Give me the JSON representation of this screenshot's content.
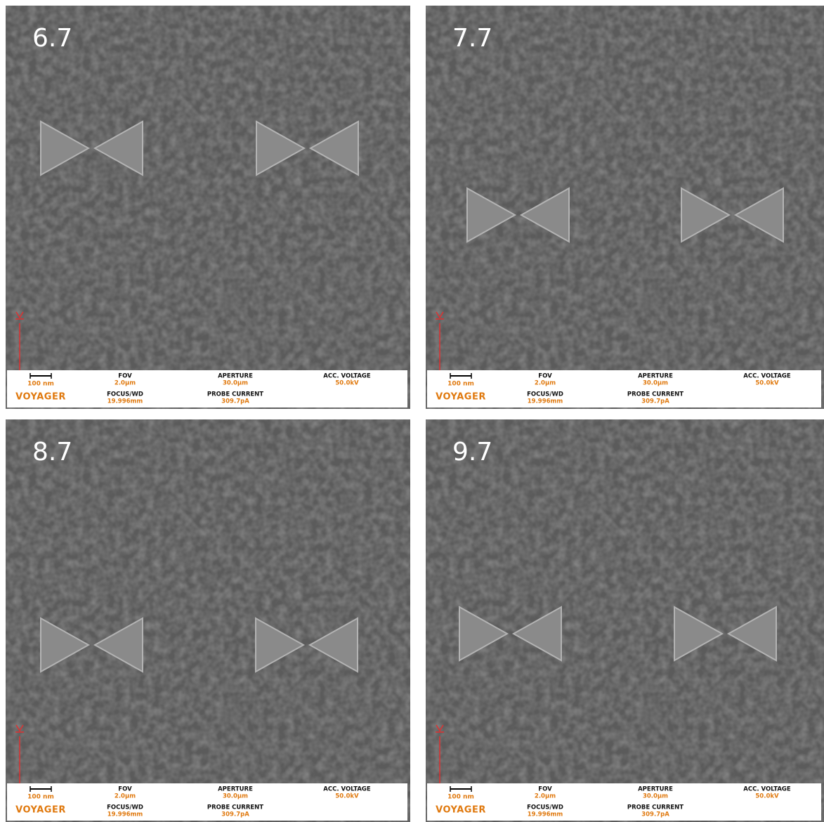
{
  "panels": [
    {
      "label": "6.7",
      "info": {
        "scale": "100 nm",
        "logo": "VOYAGER",
        "fov_label": "FOV",
        "fov": "2.0µm",
        "aperture_label": "APERTURE",
        "aperture": "30.0µm",
        "voltage_label": "ACC. VOLTAGE",
        "voltage": "50.0kV",
        "focus_label": "FOCUS/WD",
        "focus": "19.996mm",
        "current_label": "PROBE CURRENT",
        "current": "309.7pA"
      }
    },
    {
      "label": "7.7",
      "info": {
        "scale": "100 nm",
        "logo": "VOYAGER",
        "fov_label": "FOV",
        "fov": "2.0µm",
        "aperture_label": "APERTURE",
        "aperture": "30.0µm",
        "voltage_label": "ACC. VOLTAGE",
        "voltage": "50.0kV",
        "focus_label": "FOCUS/WD",
        "focus": "19.996mm",
        "current_label": "PROBE CURRENT",
        "current": "309.7pA"
      }
    },
    {
      "label": "8.7",
      "info": {
        "scale": "100 nm",
        "logo": "VOYAGER",
        "fov_label": "FOV",
        "fov": "2.0µm",
        "aperture_label": "APERTURE",
        "aperture": "30.0µm",
        "voltage_label": "ACC. VOLTAGE",
        "voltage": "50.0kV",
        "focus_label": "FOCUS/WD",
        "focus": "19.996mm",
        "current_label": "PROBE CURRENT",
        "current": "309.7pA"
      }
    },
    {
      "label": "9.7",
      "info": {
        "scale": "100 nm",
        "logo": "VOYAGER",
        "fov_label": "FOV",
        "fov": "2.0µm",
        "aperture_label": "APERTURE",
        "aperture": "30.0µm",
        "voltage_label": "ACC. VOLTAGE",
        "voltage": "50.0kV",
        "focus_label": "FOCUS/WD",
        "focus": "19.996mm",
        "current_label": "PROBE CURRENT",
        "current": "309.7pA"
      }
    }
  ]
}
